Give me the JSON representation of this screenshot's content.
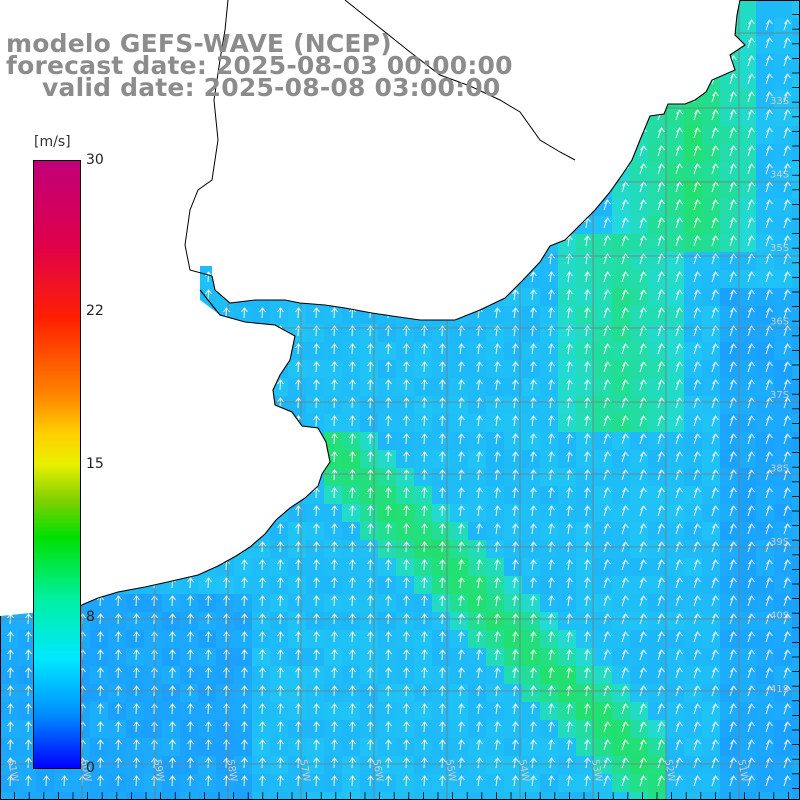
{
  "title": {
    "line1": "modelo GEFS-WAVE (NCEP)",
    "line2": "forecast date: 2025-08-03 00:00:00",
    "line3": "valid date: 2025-08-08 03:00:00"
  },
  "colorbar": {
    "unit": "[m/s]",
    "ticks": [
      "30",
      "22",
      "15",
      "8",
      "0"
    ],
    "tick_values": [
      30,
      22,
      15,
      8,
      0
    ],
    "range": [
      0,
      30
    ],
    "stops": [
      "#0000ff",
      "#0090ff",
      "#00e8ff",
      "#00f0a0",
      "#00e000",
      "#e8f000",
      "#ff8000",
      "#ff2000",
      "#c0007a"
    ]
  },
  "map": {
    "field": "wind speed (m/s)",
    "vector_direction": "northward (arrows point up, slight NE tilt in the east)",
    "land_color": "#ffffff",
    "coastline_color": "#000000",
    "grid_color": "#7a7a7a",
    "lon_labels": [
      "61W",
      "60W",
      "59W",
      "58W",
      "57W",
      "56W",
      "55W",
      "54W",
      "53W",
      "52W",
      "51W"
    ],
    "lat_labels": [
      "33S",
      "34S",
      "35S",
      "36S",
      "37S",
      "38S",
      "39S",
      "40S",
      "41S"
    ],
    "label_color": "#cccccc"
  },
  "colors": {
    "title_gray": "#8c8c8c",
    "ocean_low": "#1aa0ff",
    "ocean_mid": "#22d8f0",
    "ocean_high": "#22e070"
  }
}
